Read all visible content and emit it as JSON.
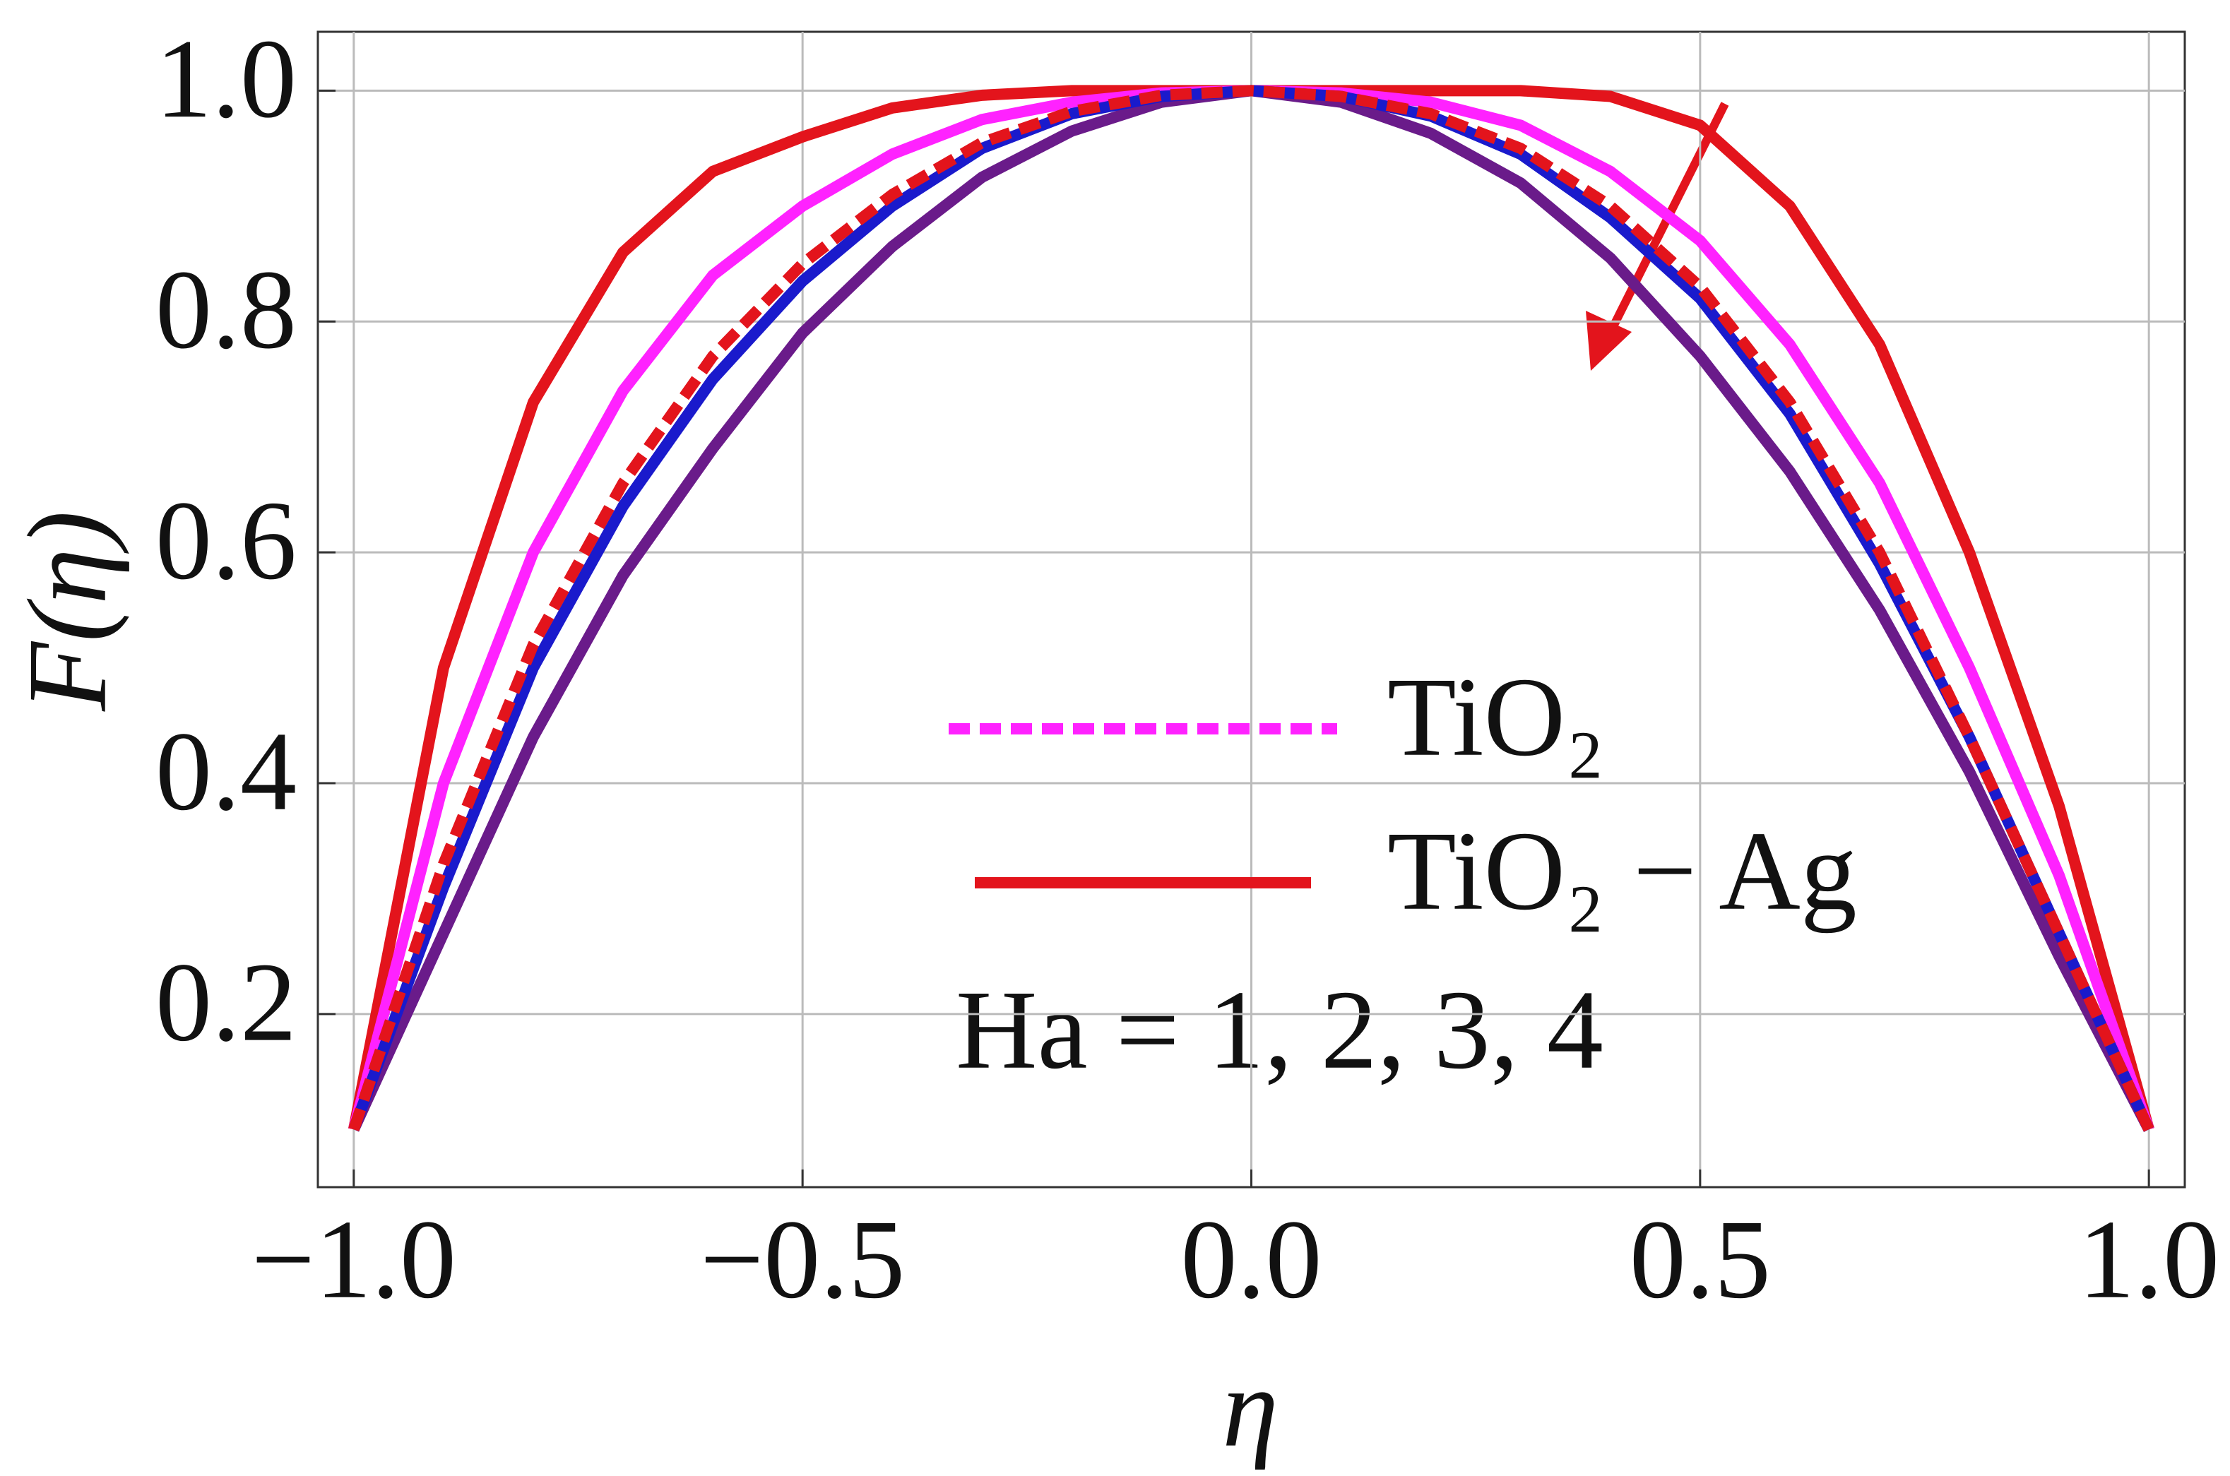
{
  "chart_data": {
    "type": "line",
    "xlabel": "η",
    "ylabel": "F(η)",
    "annotation": "Ha = 1, 2, 3, 4",
    "x": [
      -1,
      -0.9,
      -0.8,
      -0.7,
      -0.6,
      -0.5,
      -0.4,
      -0.3,
      -0.2,
      -0.1,
      0,
      0.1,
      0.2,
      0.3,
      0.4,
      0.5,
      0.6,
      0.7,
      0.8,
      0.9,
      1
    ],
    "series": [
      {
        "color": "#e3141c",
        "dashed": false,
        "values": [
          0.1,
          0.5,
          0.73,
          0.86,
          0.93,
          0.96,
          0.985,
          0.996,
          1,
          1,
          1,
          1,
          1,
          1,
          0.995,
          0.97,
          0.9,
          0.78,
          0.6,
          0.38,
          0.1
        ]
      },
      {
        "color": "#ff22ff",
        "dashed": false,
        "values": [
          0.1,
          0.4,
          0.6,
          0.74,
          0.84,
          0.9,
          0.945,
          0.975,
          0.99,
          0.998,
          1,
          0.998,
          0.99,
          0.97,
          0.93,
          0.87,
          0.78,
          0.66,
          0.5,
          0.32,
          0.1
        ]
      },
      {
        "color": "#6a1b8a",
        "dashed": false,
        "values": [
          0.1,
          0.27,
          0.44,
          0.58,
          0.69,
          0.79,
          0.865,
          0.925,
          0.965,
          0.99,
          1,
          0.99,
          0.963,
          0.92,
          0.855,
          0.77,
          0.67,
          0.55,
          0.41,
          0.25,
          0.1
        ]
      },
      {
        "color": "#1a1acc",
        "dashed": false,
        "values": [
          0.1,
          0.31,
          0.5,
          0.64,
          0.75,
          0.835,
          0.9,
          0.95,
          0.98,
          0.995,
          1,
          0.995,
          0.978,
          0.945,
          0.89,
          0.82,
          0.72,
          0.59,
          0.44,
          0.27,
          0.1
        ]
      },
      {
        "color": "#e3141c",
        "dashed": true,
        "values": [
          0.1,
          0.33,
          0.52,
          0.66,
          0.77,
          0.85,
          0.91,
          0.955,
          0.982,
          0.996,
          1,
          0.995,
          0.98,
          0.95,
          0.9,
          0.83,
          0.73,
          0.6,
          0.44,
          0.27,
          0.1
        ]
      }
    ],
    "legend": [
      {
        "name": "TiO₂",
        "color": "#ff22ff",
        "dashed": true
      },
      {
        "name": "TiO₂ − Ag",
        "color": "#e3141c",
        "dashed": false
      }
    ],
    "xlim": [
      -1.04,
      1.04
    ],
    "ylim": [
      0.05,
      1.051
    ],
    "xticks": [
      {
        "value": -1,
        "label": "−1.0"
      },
      {
        "value": -0.5,
        "label": "−0.5"
      },
      {
        "value": 0,
        "label": "0.0"
      },
      {
        "value": 0.5,
        "label": "0.5"
      },
      {
        "value": 1,
        "label": "1.0"
      }
    ],
    "yticks": [
      0.2,
      0.4,
      0.6,
      0.8,
      {
        "value": 1,
        "label": "1.0"
      }
    ],
    "grid": true
  }
}
